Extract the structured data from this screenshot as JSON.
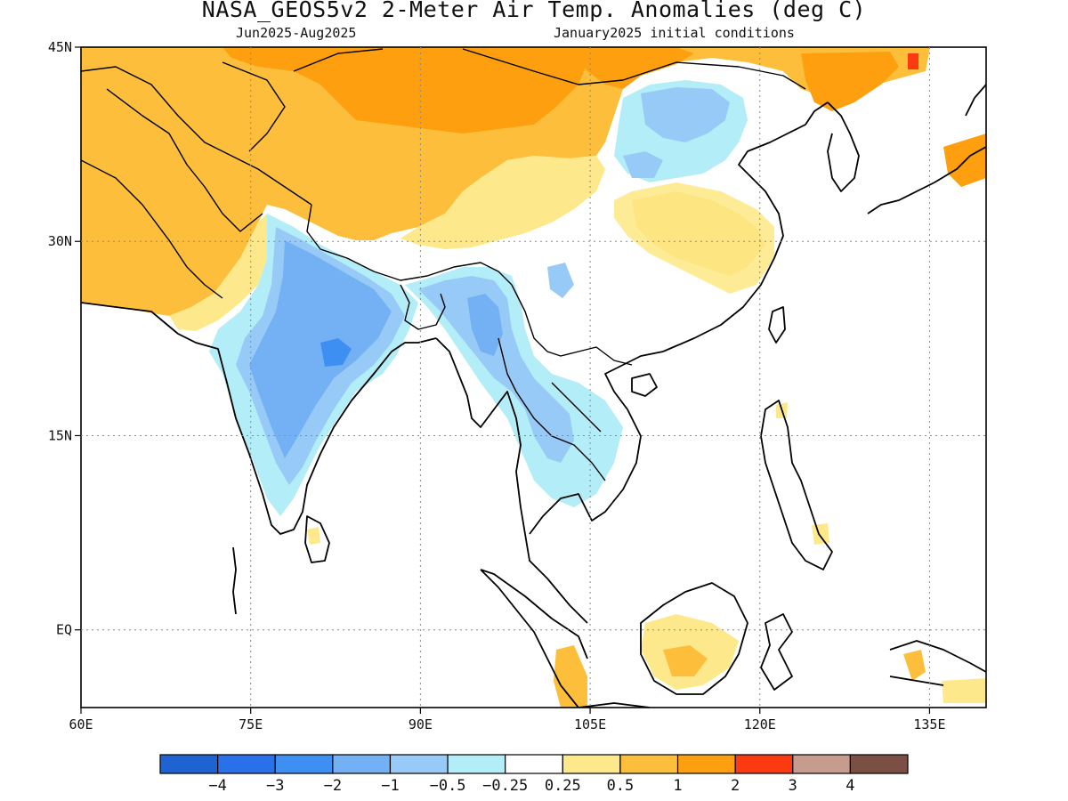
{
  "header": {
    "title": "NASA_GEOS5v2 2-Meter Air Temp. Anomalies (deg C)",
    "period": "Jun2025-Aug2025",
    "init": "January2025 initial conditions"
  },
  "map": {
    "lon_range": [
      60,
      140
    ],
    "lat_range": [
      -6,
      45
    ],
    "lat_ticks": [
      {
        "value": 45,
        "label": "45N"
      },
      {
        "value": 30,
        "label": "30N"
      },
      {
        "value": 15,
        "label": "15N"
      },
      {
        "value": 0,
        "label": "EQ"
      }
    ],
    "lon_ticks": [
      {
        "value": 60,
        "label": "60E"
      },
      {
        "value": 75,
        "label": "75E"
      },
      {
        "value": 90,
        "label": "90E"
      },
      {
        "value": 105,
        "label": "105E"
      },
      {
        "value": 120,
        "label": "120E"
      },
      {
        "value": 135,
        "label": "135E"
      }
    ],
    "grid": "dotted"
  },
  "colorbar": {
    "colors": [
      "#1f63d3",
      "#2a70eb",
      "#3d8ff2",
      "#74b1f4",
      "#98caf7",
      "#b3edf8",
      "#ffffff",
      "#fde98b",
      "#fdbf3b",
      "#fd9f0e",
      "#fc3a12",
      "#c79b8d",
      "#7b4f43"
    ],
    "labels": [
      "-4",
      "-3",
      "-2",
      "-1",
      "-0.5",
      "-0.25",
      "0.25",
      "0.5",
      "1",
      "2",
      "3",
      "4"
    ]
  }
}
